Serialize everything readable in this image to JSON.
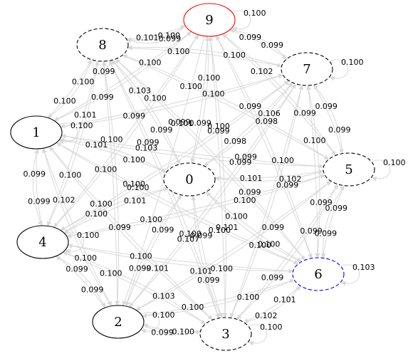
{
  "graph": {
    "nodes": [
      {
        "id": "0",
        "label": "0",
        "stroke": "#000000",
        "dashed": true
      },
      {
        "id": "1",
        "label": "1",
        "stroke": "#000000",
        "dashed": false
      },
      {
        "id": "2",
        "label": "2",
        "stroke": "#000000",
        "dashed": false
      },
      {
        "id": "3",
        "label": "3",
        "stroke": "#000000",
        "dashed": true
      },
      {
        "id": "4",
        "label": "4",
        "stroke": "#000000",
        "dashed": false
      },
      {
        "id": "5",
        "label": "5",
        "stroke": "#000000",
        "dashed": true
      },
      {
        "id": "6",
        "label": "6",
        "stroke": "#0000ff",
        "dashed": true
      },
      {
        "id": "7",
        "label": "7",
        "stroke": "#000000",
        "dashed": true
      },
      {
        "id": "8",
        "label": "8",
        "stroke": "#000000",
        "dashed": true
      },
      {
        "id": "9",
        "label": "9",
        "stroke": "#ff0000",
        "dashed": false
      }
    ],
    "edge_color": "#d9d9d9",
    "edges": [
      {
        "from": "9",
        "to": "9",
        "label": "0.100"
      },
      {
        "from": "8",
        "to": "9",
        "label": "0.101"
      },
      {
        "from": "9",
        "to": "8",
        "label": "0.100"
      },
      {
        "from": "9",
        "to": "8",
        "label": "0.099"
      },
      {
        "from": "9",
        "to": "7",
        "label": "0.099"
      },
      {
        "from": "7",
        "to": "9",
        "label": "0.099"
      },
      {
        "from": "7",
        "to": "7",
        "label": "0.100"
      },
      {
        "from": "8",
        "to": "8",
        "label": "0.099"
      },
      {
        "from": "1",
        "to": "8",
        "label": "0.100"
      },
      {
        "from": "8",
        "to": "1",
        "label": "0.100"
      },
      {
        "from": "5",
        "to": "5",
        "label": "0.100"
      },
      {
        "from": "6",
        "to": "6",
        "label": "0.103"
      },
      {
        "from": "3",
        "to": "3",
        "label": "0.100"
      },
      {
        "from": "2",
        "to": "2",
        "label": "0.100"
      },
      {
        "from": "3",
        "to": "2",
        "label": "0.100"
      },
      {
        "from": "4",
        "to": "1",
        "label": "0.099"
      },
      {
        "from": "1",
        "to": "4",
        "label": "0.099"
      },
      {
        "from": "2",
        "to": "4",
        "label": "0.099"
      },
      {
        "from": "4",
        "to": "2",
        "label": "0.099"
      },
      {
        "from": "7",
        "to": "6",
        "label": "0.100"
      },
      {
        "from": "5",
        "to": "6",
        "label": "0.099"
      },
      {
        "from": "6",
        "to": "5",
        "label": "0.099"
      },
      {
        "from": "7",
        "to": "5",
        "label": "0.099"
      },
      {
        "from": "6",
        "to": "3",
        "label": "0.101"
      },
      {
        "from": "2",
        "to": "3",
        "label": "0.099"
      },
      {
        "from": "0",
        "to": "9",
        "label": "0.099"
      },
      {
        "from": "0",
        "to": "8",
        "label": "0.099"
      },
      {
        "from": "0",
        "to": "1",
        "label": "0.100"
      },
      {
        "from": "0",
        "to": "4",
        "label": "0.101"
      },
      {
        "from": "0",
        "to": "2",
        "label": "0.099"
      },
      {
        "from": "0",
        "to": "3",
        "label": "0.099"
      },
      {
        "from": "0",
        "to": "5",
        "label": "0.101"
      },
      {
        "from": "0",
        "to": "6",
        "label": "0.100"
      },
      {
        "from": "0",
        "to": "7",
        "label": "0.098"
      },
      {
        "from": "8",
        "to": "0",
        "label": "0.103"
      },
      {
        "from": "1",
        "to": "0",
        "label": "0.101"
      },
      {
        "from": "4",
        "to": "0",
        "label": "0.100"
      },
      {
        "from": "2",
        "to": "0",
        "label": "0.099"
      },
      {
        "from": "3",
        "to": "0",
        "label": "0.099"
      },
      {
        "from": "5",
        "to": "0",
        "label": "0.102"
      },
      {
        "from": "6",
        "to": "0",
        "label": "0.100"
      },
      {
        "from": "7",
        "to": "0",
        "label": "0.106"
      },
      {
        "from": "9",
        "to": "0",
        "label": "0.100"
      },
      {
        "from": "9",
        "to": "1",
        "label": "0.100"
      },
      {
        "from": "9",
        "to": "4",
        "label": "0.100"
      },
      {
        "from": "9",
        "to": "2",
        "label": "0.101"
      },
      {
        "from": "9",
        "to": "3",
        "label": "0.100"
      },
      {
        "from": "9",
        "to": "5",
        "label": "0.102"
      },
      {
        "from": "9",
        "to": "6",
        "label": "0.099"
      },
      {
        "from": "8",
        "to": "7",
        "label": "0.100"
      },
      {
        "from": "8",
        "to": "5",
        "label": "0.100"
      },
      {
        "from": "8",
        "to": "6",
        "label": "0.099"
      },
      {
        "from": "8",
        "to": "4",
        "label": "0.101"
      },
      {
        "from": "8",
        "to": "2",
        "label": "0.100"
      },
      {
        "from": "8",
        "to": "3",
        "label": "0.099"
      },
      {
        "from": "7",
        "to": "8",
        "label": "0.100"
      },
      {
        "from": "7",
        "to": "1",
        "label": "0.100"
      },
      {
        "from": "7",
        "to": "4",
        "label": "0.099"
      },
      {
        "from": "7",
        "to": "2",
        "label": "0.099"
      },
      {
        "from": "7",
        "to": "3",
        "label": "0.100"
      },
      {
        "from": "1",
        "to": "5",
        "label": "0.103"
      },
      {
        "from": "1",
        "to": "6",
        "label": "0.100"
      },
      {
        "from": "1",
        "to": "2",
        "label": "0.102"
      },
      {
        "from": "1",
        "to": "3",
        "label": "0.100"
      },
      {
        "from": "1",
        "to": "7",
        "label": "0.099"
      },
      {
        "from": "1",
        "to": "9",
        "label": "0.099"
      },
      {
        "from": "4",
        "to": "5",
        "label": "0.100"
      },
      {
        "from": "4",
        "to": "6",
        "label": "0.100"
      },
      {
        "from": "4",
        "to": "3",
        "label": "0.100"
      },
      {
        "from": "4",
        "to": "7",
        "label": "0.100"
      },
      {
        "from": "4",
        "to": "8",
        "label": "0.100"
      },
      {
        "from": "4",
        "to": "9",
        "label": "0.100"
      },
      {
        "from": "2",
        "to": "5",
        "label": "0.101"
      },
      {
        "from": "2",
        "to": "6",
        "label": "0.100"
      },
      {
        "from": "2",
        "to": "7",
        "label": "0.107"
      },
      {
        "from": "2",
        "to": "1",
        "label": "0.100"
      },
      {
        "from": "2",
        "to": "8",
        "label": "0.099"
      },
      {
        "from": "3",
        "to": "5",
        "label": "0.099"
      },
      {
        "from": "3",
        "to": "6",
        "label": "0.102"
      },
      {
        "from": "3",
        "to": "4",
        "label": "0.103"
      },
      {
        "from": "3",
        "to": "1",
        "label": "0.101"
      },
      {
        "from": "3",
        "to": "7",
        "label": "0.100"
      },
      {
        "from": "3",
        "to": "8",
        "label": "0.100"
      },
      {
        "from": "3",
        "to": "9",
        "label": "0.101"
      },
      {
        "from": "5",
        "to": "9",
        "label": "0.099"
      },
      {
        "from": "5",
        "to": "8",
        "label": "0.098"
      },
      {
        "from": "5",
        "to": "7",
        "label": "0.099"
      },
      {
        "from": "5",
        "to": "1",
        "label": "0.099"
      },
      {
        "from": "5",
        "to": "4",
        "label": "0.100"
      },
      {
        "from": "5",
        "to": "2",
        "label": "0.099"
      },
      {
        "from": "5",
        "to": "3",
        "label": "0.099"
      },
      {
        "from": "6",
        "to": "9",
        "label": "0.099"
      },
      {
        "from": "6",
        "to": "8",
        "label": "0.099"
      },
      {
        "from": "6",
        "to": "7",
        "label": "0.099"
      },
      {
        "from": "6",
        "to": "1",
        "label": "0.100"
      },
      {
        "from": "6",
        "to": "4",
        "label": "0.100"
      },
      {
        "from": "6",
        "to": "2",
        "label": "0.100"
      },
      {
        "from": "1",
        "to": "1",
        "label": "0.100"
      },
      {
        "from": "4",
        "to": "4",
        "label": "0.100"
      }
    ]
  }
}
